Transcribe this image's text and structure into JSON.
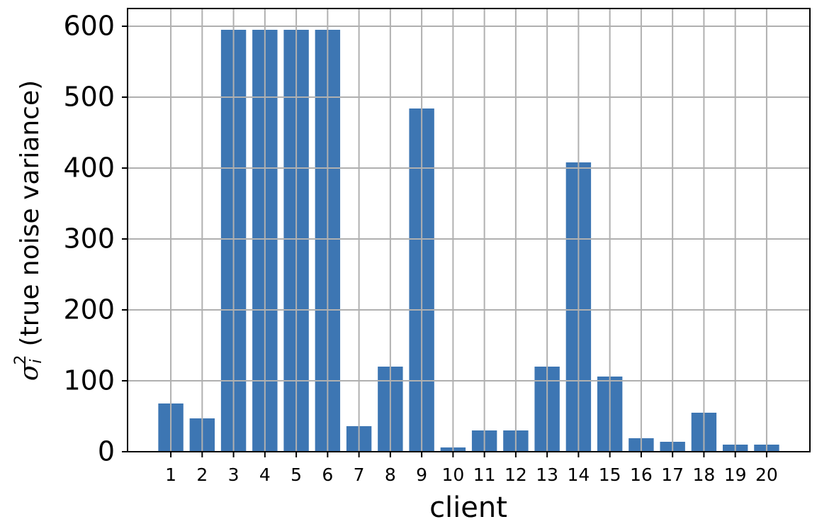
{
  "chart_data": {
    "type": "bar",
    "xlabel": "client",
    "ylabel": {
      "symbol": "σ",
      "sub": "i",
      "sup": "2",
      "text": "(true noise variance)"
    },
    "x": [
      1,
      2,
      3,
      4,
      5,
      6,
      7,
      8,
      9,
      10,
      11,
      12,
      13,
      14,
      15,
      16,
      17,
      18,
      19,
      20
    ],
    "values": [
      68,
      47,
      595,
      595,
      595,
      595,
      36,
      120,
      484,
      6,
      30,
      30,
      120,
      408,
      106,
      19,
      14,
      55,
      10,
      10
    ],
    "color": "#3d76b3",
    "bar_width": 0.8,
    "xlim": [
      -0.38,
      21.38
    ],
    "xticks": [
      1,
      2,
      3,
      4,
      5,
      6,
      7,
      8,
      9,
      10,
      11,
      12,
      13,
      14,
      15,
      16,
      17,
      18,
      19,
      20
    ],
    "ylim": [
      0,
      625
    ],
    "yticks": [
      0,
      100,
      200,
      300,
      400,
      500,
      600
    ],
    "grid": true
  }
}
